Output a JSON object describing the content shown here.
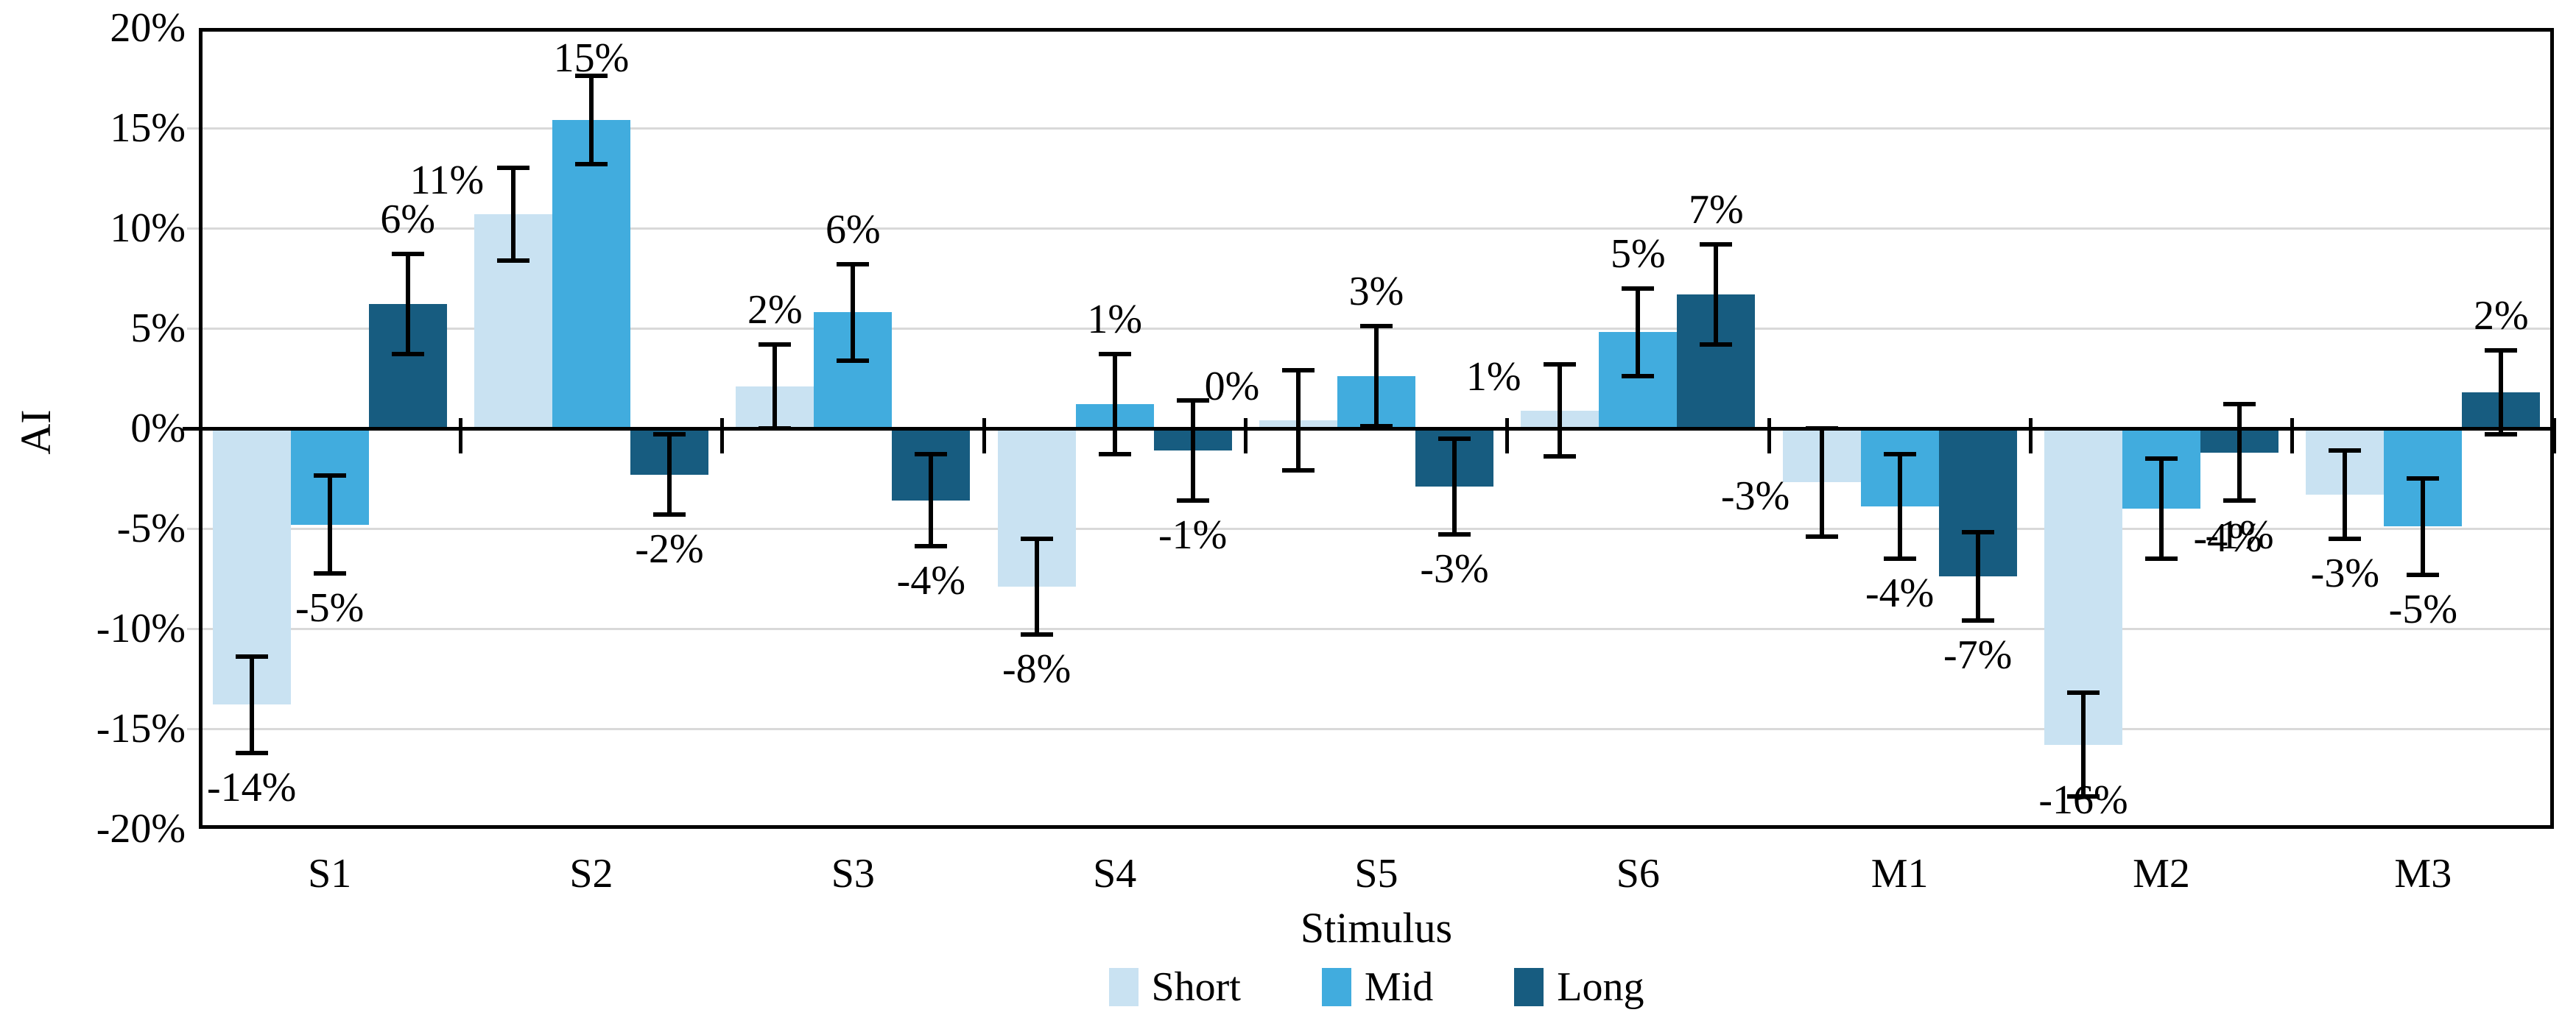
{
  "figure": {
    "background": "#FFFFFF",
    "text_color": "#000000"
  },
  "chart_data": {
    "type": "bar",
    "title": "",
    "xlabel": "Stimulus",
    "ylabel": "AI",
    "ylim": [
      -20,
      20
    ],
    "ytick_step": 5,
    "ytick_labels": [
      "20%",
      "15%",
      "10%",
      "5%",
      "0%",
      "-5%",
      "-10%",
      "-15%",
      "-20%"
    ],
    "grid": true,
    "gridline_color": "#D9D9D9",
    "axis_color": "#000000",
    "error_bar_color": "#000000",
    "legend_position": "bottom",
    "categories": [
      "S1",
      "S2",
      "S3",
      "S4",
      "S5",
      "S6",
      "M1",
      "M2",
      "M3"
    ],
    "series": [
      {
        "name": "Short",
        "color": "#C9E2F2",
        "values": [
          -13.8,
          10.7,
          2.1,
          -7.9,
          0.4,
          0.9,
          -2.7,
          -15.8,
          -3.3
        ],
        "errors": [
          2.4,
          2.3,
          2.1,
          2.4,
          2.5,
          2.3,
          2.7,
          2.6,
          2.2
        ],
        "labels": [
          "-14%",
          "11%",
          "2%",
          "-8%",
          "0%",
          "1%",
          "-3%",
          "-16%",
          "-3%"
        ],
        "label_pos": [
          "auto",
          "left",
          "auto",
          "auto",
          "left",
          "left",
          "left",
          "auto",
          "auto"
        ]
      },
      {
        "name": "Mid",
        "color": "#41ACDE",
        "values": [
          -4.8,
          15.4,
          5.8,
          1.2,
          2.6,
          4.8,
          -3.9,
          -4.0,
          -4.9
        ],
        "errors": [
          2.45,
          2.2,
          2.4,
          2.5,
          2.5,
          2.2,
          2.6,
          2.5,
          2.4
        ],
        "labels": [
          "-5%",
          "15%",
          "6%",
          "1%",
          "3%",
          "5%",
          "-4%",
          "-4%",
          "-5%"
        ],
        "label_pos": [
          "auto",
          "auto",
          "auto",
          "auto",
          "auto",
          "auto",
          "auto",
          "right",
          "auto"
        ]
      },
      {
        "name": "Long",
        "color": "#175C80",
        "values": [
          6.2,
          -2.3,
          -3.6,
          -1.1,
          -2.9,
          6.7,
          -7.4,
          -1.2,
          1.8
        ],
        "errors": [
          2.5,
          2.0,
          2.3,
          2.5,
          2.4,
          2.5,
          2.2,
          2.4,
          2.1
        ],
        "labels": [
          "6%",
          "-2%",
          "-4%",
          "-1%",
          "-3%",
          "7%",
          "-7%",
          "-1%",
          "2%"
        ],
        "label_pos": [
          "auto",
          "auto",
          "auto",
          "auto",
          "auto",
          "auto",
          "auto",
          "auto",
          "auto"
        ]
      }
    ]
  }
}
